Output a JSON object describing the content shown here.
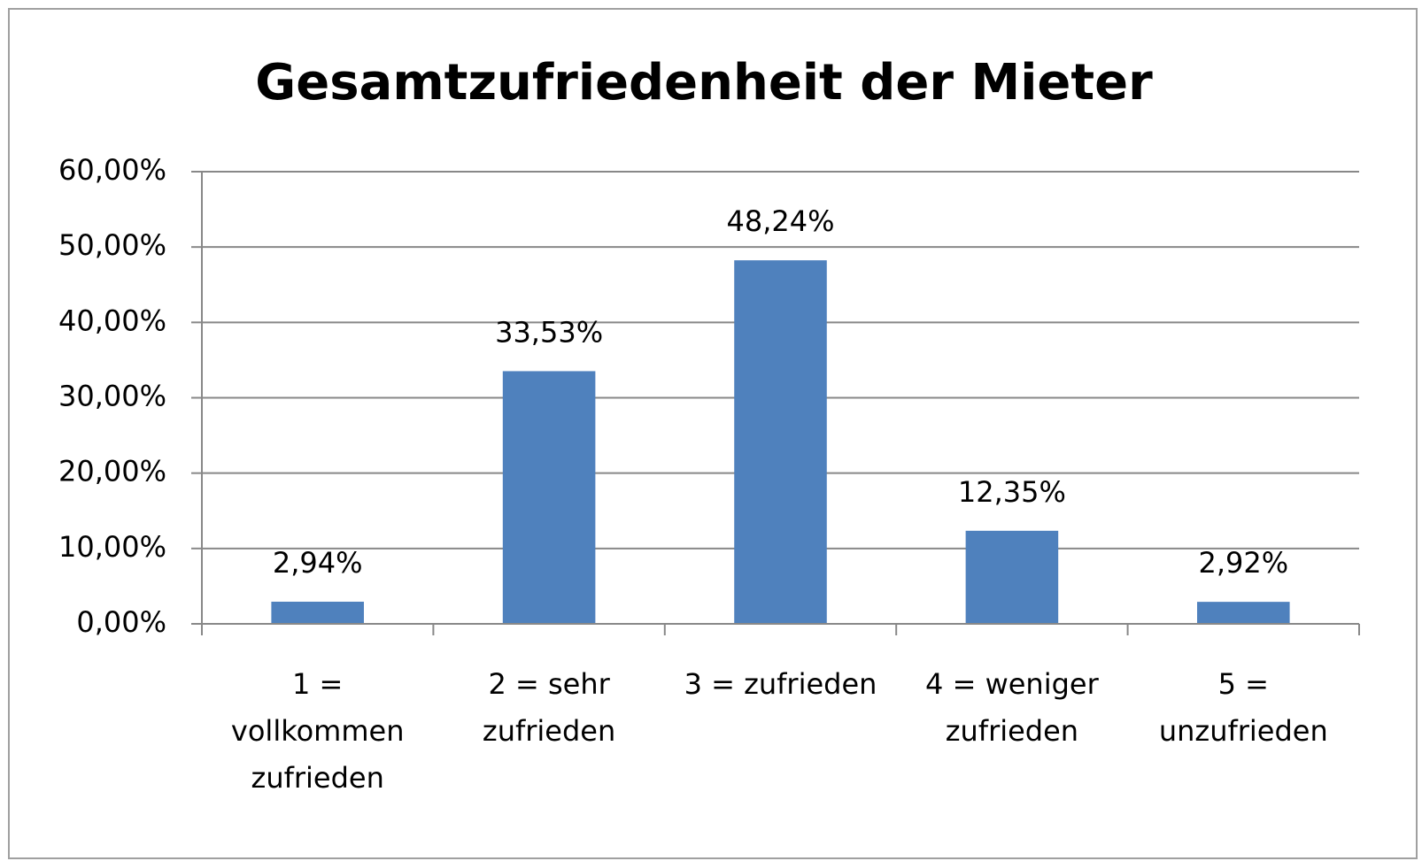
{
  "chart_data": {
    "type": "bar",
    "title": "Gesamtzufriedenheit der Mieter",
    "categories": [
      [
        "1 =",
        "vollkommen",
        "zufrieden"
      ],
      [
        "2 = sehr",
        "zufrieden"
      ],
      [
        "3 = zufrieden"
      ],
      [
        "4 = weniger",
        "zufrieden"
      ],
      [
        "5 =",
        "unzufrieden"
      ]
    ],
    "values": [
      2.94,
      33.53,
      48.24,
      12.35,
      2.92
    ],
    "value_labels": [
      "2,94%",
      "33,53%",
      "48,24%",
      "12,35%",
      "2,92%"
    ],
    "color": "#4f81bd",
    "ylim": [
      0,
      60
    ],
    "yticks": [
      {
        "value": 0,
        "label": "0,00%"
      },
      {
        "value": 10,
        "label": "10,00%"
      },
      {
        "value": 20,
        "label": "20,00%"
      },
      {
        "value": 30,
        "label": "30,00%"
      },
      {
        "value": 40,
        "label": "40,00%"
      },
      {
        "value": 50,
        "label": "50,00%"
      },
      {
        "value": 60,
        "label": "60,00%"
      }
    ],
    "grid": true
  }
}
